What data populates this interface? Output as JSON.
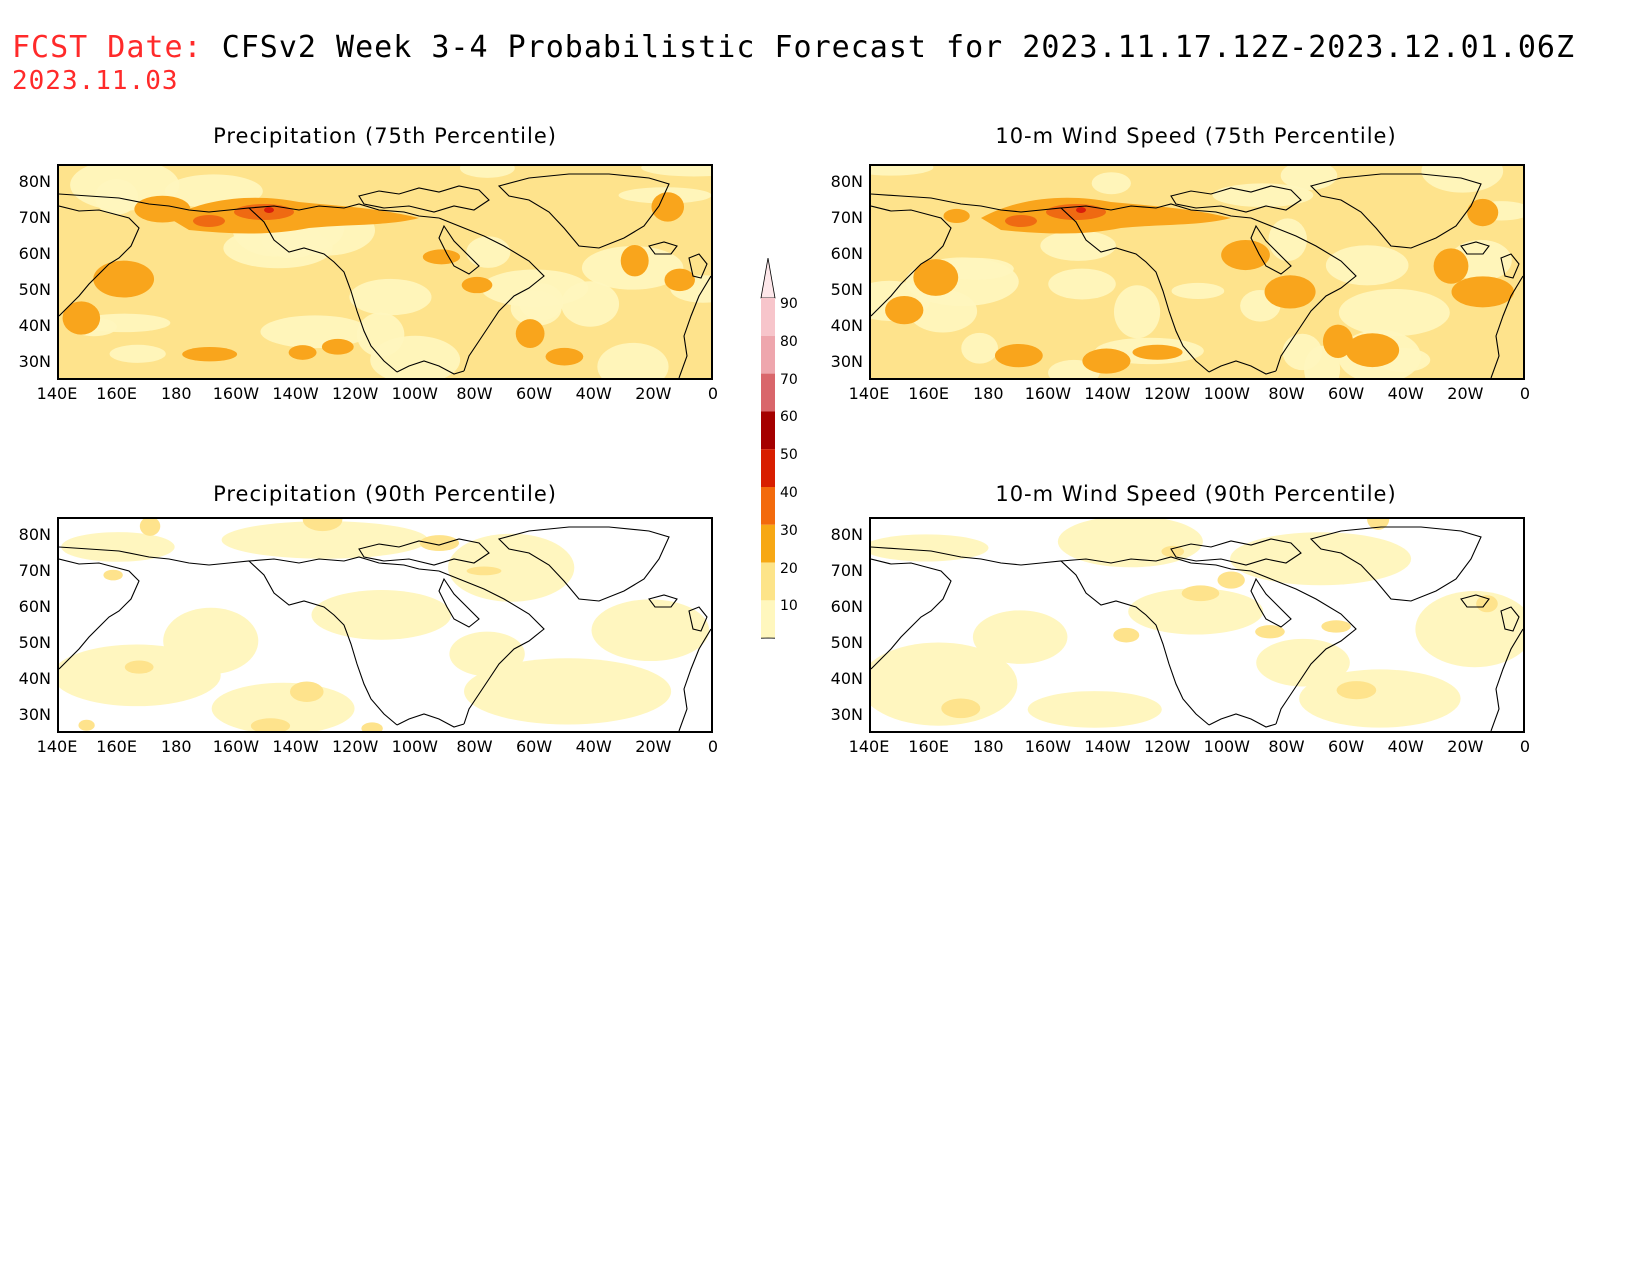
{
  "header": {
    "fcst_label": "FCST Date:",
    "title": "CFSv2 Week 3-4 Probabilistic Forecast for 2023.11.17.12Z-2023.12.01.06Z",
    "fcst_date": "2023.11.03"
  },
  "panels": [
    {
      "title": "Precipitation (75th Percentile)",
      "intensity": 2
    },
    {
      "title": "10-m Wind Speed (75th Percentile)",
      "intensity": 2
    },
    {
      "title": "Precipitation (90th Percentile)",
      "intensity": 0
    },
    {
      "title": "10-m Wind Speed (90th Percentile)",
      "intensity": 0
    }
  ],
  "lat_labels": [
    "80N",
    "70N",
    "60N",
    "50N",
    "40N",
    "30N"
  ],
  "lon_labels": [
    "140E",
    "160E",
    "180",
    "160W",
    "140W",
    "120W",
    "100W",
    "80W",
    "60W",
    "40W",
    "20W",
    "0"
  ],
  "colorbar": {
    "levels": [
      "90",
      "80",
      "70",
      "60",
      "50",
      "40",
      "30",
      "20",
      "10"
    ],
    "colors": [
      "#f7c5cb",
      "#eea6ad",
      "#d9666b",
      "#a50000",
      "#d81e00",
      "#f36a0c",
      "#f7a814",
      "#fde489",
      "#fff7be"
    ]
  },
  "colors": {
    "level1": "#fff6bf",
    "level2": "#fee38c",
    "level3": "#f9a51c",
    "level4": "#ef6a12",
    "level5": "#d91e0a"
  }
}
